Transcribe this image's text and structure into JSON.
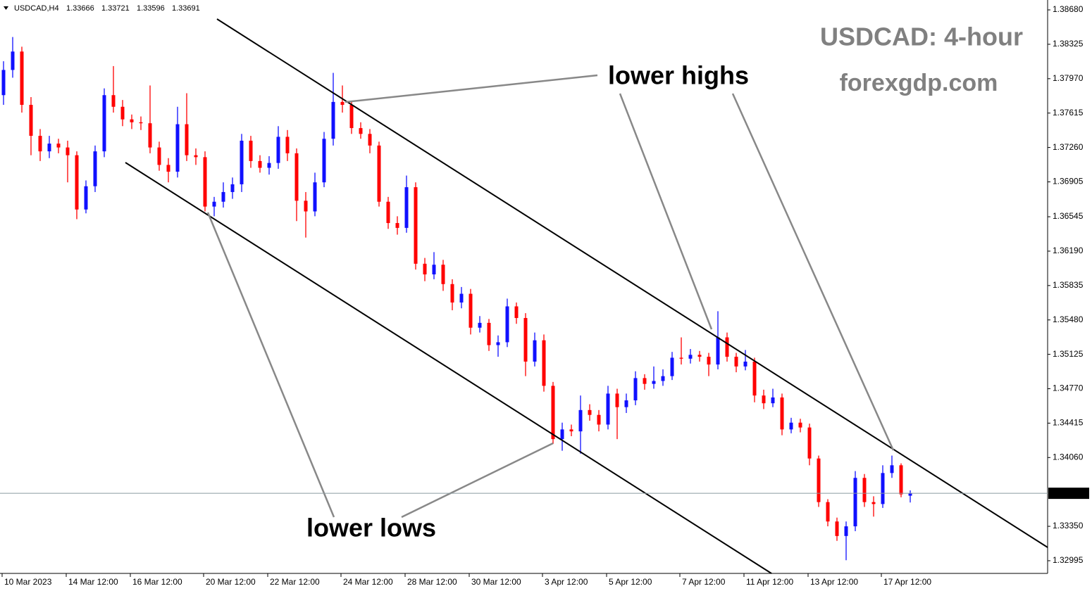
{
  "chart_data": {
    "type": "candlestick",
    "symbol": "USDCAD,H4",
    "title": "USDCAD: 4-hour",
    "subtitle": "forexgdp.com",
    "annotations": [
      "lower highs",
      "lower lows"
    ],
    "up_color": "#1010ff",
    "down_color": "#ff0000",
    "xlim": [
      -0.385,
      114
    ],
    "xticks": [
      {
        "value": 0,
        "label": "10 Mar 2023"
      },
      {
        "value": 7,
        "label": "14 Mar 12:00"
      },
      {
        "value": 14,
        "label": "16 Mar 12:00"
      },
      {
        "value": 22,
        "label": "20 Mar 12:00"
      },
      {
        "value": 29,
        "label": "22 Mar 12:00"
      },
      {
        "value": 37,
        "label": "24 Mar 12:00"
      },
      {
        "value": 44,
        "label": "28 Mar 12:00"
      },
      {
        "value": 51,
        "label": "30 Mar 12:00"
      },
      {
        "value": 59,
        "label": "3 Apr 12:00"
      },
      {
        "value": 66,
        "label": "5 Apr 12:00"
      },
      {
        "value": 74,
        "label": "7 Apr 12:00"
      },
      {
        "value": 81,
        "label": "11 Apr 12:00"
      },
      {
        "value": 88,
        "label": "13 Apr 12:00"
      },
      {
        "value": 96,
        "label": "17 Apr 12:00"
      }
    ],
    "ylim": [
      1.32864,
      1.38782
    ],
    "yticks": [
      {
        "value": 1.3868,
        "label": "1.38680"
      },
      1.38325,
      {
        "value": 1.3797,
        "label": "1.37970"
      },
      1.37615,
      {
        "value": 1.3726,
        "label": "1.37260"
      },
      1.36905,
      1.36545,
      {
        "value": 1.3619,
        "label": "1.36190"
      },
      1.35835,
      {
        "value": 1.3548,
        "label": "1.35480"
      },
      1.35125,
      {
        "value": 1.3477,
        "label": "1.34770"
      },
      1.34415,
      {
        "value": 1.3406,
        "label": "1.34060"
      },
      {
        "value": 1.3335,
        "label": "1.33350"
      },
      1.32995
    ],
    "open": [
      1.378,
      1.3806,
      1.3825,
      1.377,
      1.3738,
      1.3722,
      1.373,
      1.3726,
      1.3718,
      1.3662,
      1.3686,
      1.3722,
      1.378,
      1.3768,
      1.3755,
      1.3752,
      1.3751,
      1.3726,
      1.3708,
      1.3701,
      1.375,
      1.3718,
      1.3716,
      1.3665,
      1.367,
      1.368,
      1.3688,
      1.3733,
      1.3712,
      1.3705,
      1.371,
      1.3737,
      1.372,
      1.3671,
      1.366,
      1.369,
      1.3735,
      1.3773,
      1.377,
      1.3746,
      1.374,
      1.3728,
      1.367,
      1.3648,
      1.3643,
      1.3685,
      1.3606,
      1.3595,
      1.3605,
      1.3585,
      1.3566,
      1.3575,
      1.354,
      1.3545,
      1.3522,
      1.3525,
      1.3562,
      1.355,
      1.3505,
      1.3527,
      1.348,
      1.3425,
      1.3435,
      1.3433,
      1.3455,
      1.345,
      1.344,
      1.3472,
      1.3458,
      1.3465,
      1.3488,
      1.3482,
      1.3485,
      1.349,
      1.3509,
      1.3508,
      1.3512,
      1.351,
      1.3502,
      1.353,
      1.351,
      1.35,
      1.3505,
      1.347,
      1.3462,
      1.3468,
      1.3435,
      1.3442,
      1.3437,
      1.3405,
      1.336,
      1.334,
      1.3325,
      1.3335,
      1.3385,
      1.336,
      1.3358,
      1.339,
      1.3398,
      1.33666
    ],
    "high": [
      1.3815,
      1.384,
      1.383,
      1.3778,
      1.3745,
      1.3738,
      1.3735,
      1.3733,
      1.3722,
      1.3692,
      1.3728,
      1.3787,
      1.381,
      1.3775,
      1.376,
      1.3758,
      1.379,
      1.3732,
      1.3715,
      1.3768,
      1.3782,
      1.3725,
      1.3722,
      1.3675,
      1.369,
      1.3695,
      1.374,
      1.3738,
      1.3718,
      1.3717,
      1.3748,
      1.3744,
      1.3725,
      1.368,
      1.37,
      1.3742,
      1.3803,
      1.379,
      1.3774,
      1.3752,
      1.3745,
      1.3732,
      1.3675,
      1.3655,
      1.3697,
      1.369,
      1.3612,
      1.3618,
      1.361,
      1.359,
      1.3582,
      1.358,
      1.3552,
      1.3549,
      1.3532,
      1.357,
      1.3566,
      1.3555,
      1.3535,
      1.3533,
      1.3484,
      1.3442,
      1.344,
      1.347,
      1.3461,
      1.3455,
      1.348,
      1.3477,
      1.3472,
      1.3495,
      1.3492,
      1.35,
      1.3497,
      1.3515,
      1.353,
      1.3518,
      1.3516,
      1.3514,
      1.3557,
      1.3535,
      1.3514,
      1.3517,
      1.3509,
      1.3476,
      1.3477,
      1.3472,
      1.3447,
      1.3446,
      1.3441,
      1.3408,
      1.3363,
      1.3344,
      1.334,
      1.3392,
      1.3389,
      1.3366,
      1.3398,
      1.3408,
      1.34,
      1.33721
    ],
    "low": [
      1.377,
      1.3798,
      1.3762,
      1.3718,
      1.3712,
      1.3715,
      1.372,
      1.369,
      1.3652,
      1.3658,
      1.368,
      1.3716,
      1.3762,
      1.3748,
      1.3745,
      1.3744,
      1.372,
      1.3702,
      1.369,
      1.3695,
      1.3712,
      1.3708,
      1.366,
      1.3655,
      1.3664,
      1.3673,
      1.368,
      1.3705,
      1.37,
      1.3698,
      1.3704,
      1.3712,
      1.365,
      1.3633,
      1.3655,
      1.3685,
      1.3728,
      1.3762,
      1.374,
      1.3735,
      1.372,
      1.3665,
      1.3642,
      1.3636,
      1.3638,
      1.36,
      1.3588,
      1.359,
      1.3578,
      1.3558,
      1.356,
      1.3533,
      1.3535,
      1.3516,
      1.351,
      1.352,
      1.3544,
      1.349,
      1.35,
      1.3474,
      1.342,
      1.3413,
      1.3428,
      1.341,
      1.3444,
      1.3433,
      1.3435,
      1.3425,
      1.3452,
      1.346,
      1.3476,
      1.3477,
      1.348,
      1.3486,
      1.3502,
      1.3503,
      1.3505,
      1.349,
      1.3497,
      1.3505,
      1.3494,
      1.3496,
      1.3463,
      1.3456,
      1.3458,
      1.3429,
      1.3431,
      1.3432,
      1.3398,
      1.3355,
      1.3335,
      1.332,
      1.33,
      1.333,
      1.3355,
      1.3345,
      1.3354,
      1.3385,
      1.3365,
      1.33596
    ],
    "close": [
      1.3806,
      1.3825,
      1.377,
      1.3738,
      1.3722,
      1.373,
      1.3726,
      1.3718,
      1.3662,
      1.3686,
      1.3722,
      1.378,
      1.3768,
      1.3755,
      1.3752,
      1.3751,
      1.3726,
      1.3708,
      1.3701,
      1.375,
      1.3718,
      1.3716,
      1.3665,
      1.367,
      1.368,
      1.3688,
      1.3733,
      1.3712,
      1.3705,
      1.371,
      1.3737,
      1.372,
      1.3671,
      1.366,
      1.369,
      1.3735,
      1.3773,
      1.377,
      1.3746,
      1.374,
      1.3728,
      1.367,
      1.3648,
      1.3643,
      1.3685,
      1.3606,
      1.3595,
      1.3605,
      1.3585,
      1.3566,
      1.3575,
      1.354,
      1.3545,
      1.3522,
      1.3525,
      1.3562,
      1.355,
      1.3505,
      1.3527,
      1.348,
      1.3425,
      1.3435,
      1.3433,
      1.3455,
      1.345,
      1.344,
      1.3472,
      1.3458,
      1.3465,
      1.3488,
      1.3482,
      1.3485,
      1.349,
      1.3509,
      1.3508,
      1.3512,
      1.351,
      1.3502,
      1.353,
      1.351,
      1.35,
      1.3505,
      1.347,
      1.3462,
      1.3468,
      1.3435,
      1.3442,
      1.3437,
      1.3405,
      1.336,
      1.334,
      1.3325,
      1.3335,
      1.3385,
      1.336,
      1.3358,
      1.339,
      1.3398,
      1.3368,
      1.33691
    ]
  }
}
